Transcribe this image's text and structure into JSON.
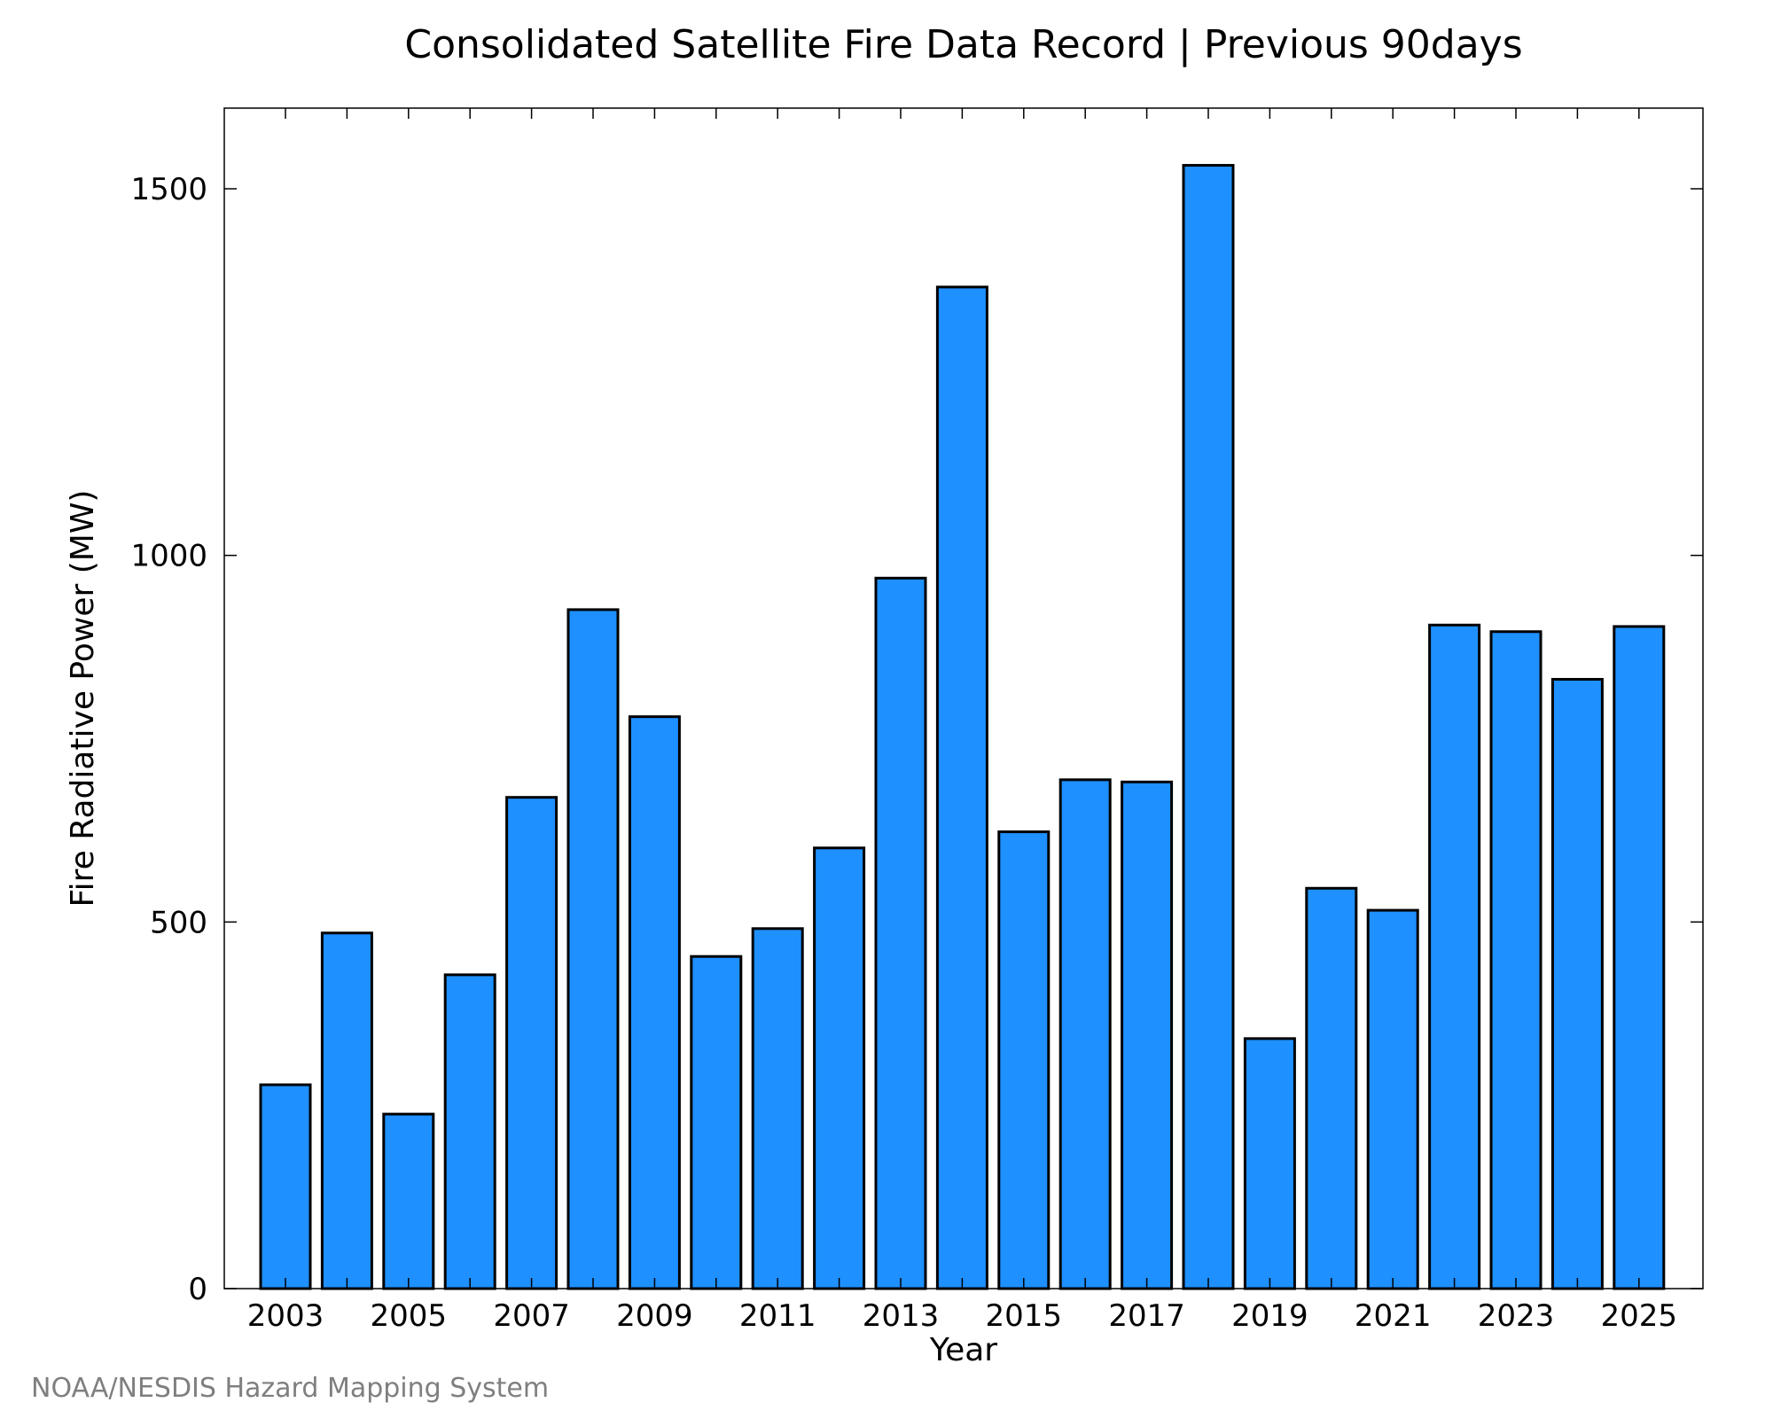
{
  "chart_data": {
    "type": "bar",
    "title": "Consolidated Satellite Fire Data Record | Previous 90days",
    "xlabel": "Year",
    "ylabel": "Fire Radiative Power (MW)",
    "categories": [
      "2003",
      "2004",
      "2005",
      "2006",
      "2007",
      "2008",
      "2009",
      "2010",
      "2011",
      "2012",
      "2013",
      "2014",
      "2015",
      "2016",
      "2017",
      "2018",
      "2019",
      "2020",
      "2021",
      "2022",
      "2023",
      "2024",
      "2025"
    ],
    "values": [
      278,
      485,
      238,
      428,
      670,
      926,
      780,
      453,
      491,
      601,
      969,
      1366,
      623,
      694,
      691,
      1532,
      341,
      546,
      516,
      905,
      896,
      831,
      903
    ],
    "x_tick_labels": [
      "2003",
      "2005",
      "2007",
      "2009",
      "2011",
      "2013",
      "2015",
      "2017",
      "2019",
      "2021",
      "2023",
      "2025"
    ],
    "y_ticks": [
      0,
      500,
      1000,
      1500
    ],
    "ylim": [
      0,
      1610
    ],
    "grid": false,
    "bar_color": "#1e90ff",
    "legend": "none"
  },
  "footer": {
    "credit": "NOAA/NESDIS Hazard Mapping System"
  }
}
